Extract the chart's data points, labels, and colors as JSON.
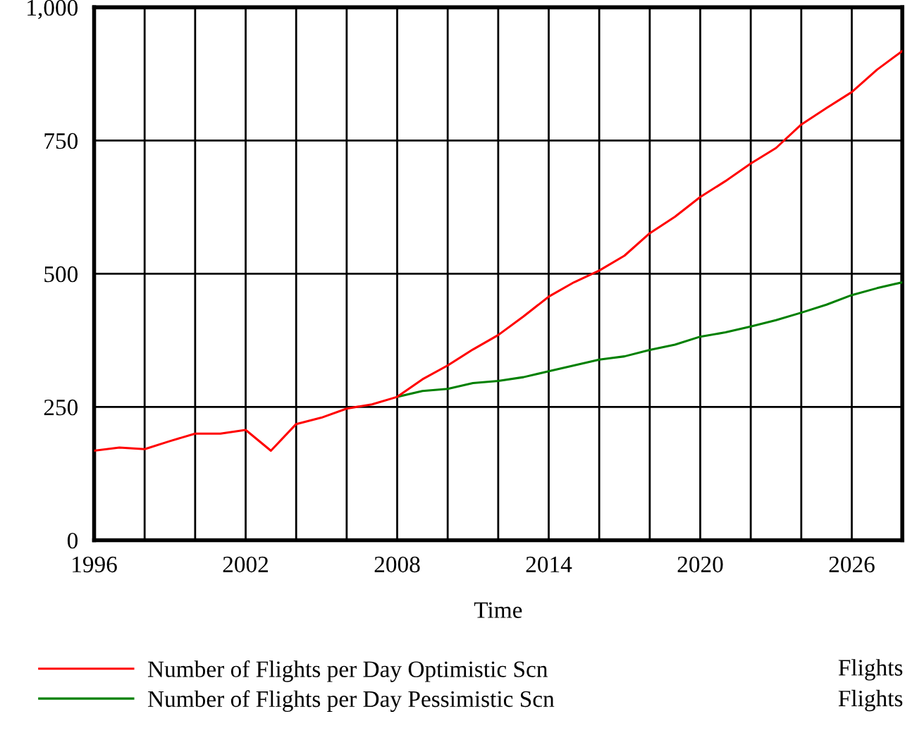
{
  "chart_data": {
    "type": "line",
    "xlabel": "Time",
    "x": [
      1996,
      1997,
      1998,
      1999,
      2000,
      2001,
      2002,
      2003,
      2004,
      2005,
      2006,
      2007,
      2008,
      2009,
      2010,
      2011,
      2012,
      2013,
      2014,
      2015,
      2016,
      2017,
      2018,
      2019,
      2020,
      2021,
      2022,
      2023,
      2024,
      2025,
      2026,
      2027,
      2028
    ],
    "series": [
      {
        "name": "Number of Flights per Day Optimistic Scn",
        "color": "#ff0000",
        "values": [
          168,
          174,
          171,
          186,
          200,
          200,
          207,
          168,
          218,
          230,
          247,
          255,
          269,
          302,
          328,
          358,
          385,
          420,
          457,
          484,
          506,
          534,
          576,
          607,
          644,
          674,
          707,
          736,
          780,
          811,
          841,
          883,
          918
        ]
      },
      {
        "name": "Number of Flights per Day Pessimistic Scn",
        "color": "#008000",
        "values": [
          null,
          null,
          null,
          null,
          null,
          null,
          null,
          null,
          null,
          null,
          null,
          null,
          269,
          280,
          284,
          295,
          299,
          306,
          317,
          328,
          339,
          345,
          357,
          367,
          382,
          390,
          401,
          413,
          427,
          442,
          460,
          473,
          484
        ]
      }
    ],
    "xlim": [
      1996,
      2028
    ],
    "xticks": [
      1996,
      {
        "value": 1998,
        "label": null
      },
      {
        "value": 2000,
        "label": null
      },
      2002,
      {
        "value": 2004,
        "label": null
      },
      {
        "value": 2006,
        "label": null
      },
      2008,
      {
        "value": 2010,
        "label": null
      },
      {
        "value": 2012,
        "label": null
      },
      2014,
      {
        "value": 2016,
        "label": null
      },
      {
        "value": 2018,
        "label": null
      },
      2020,
      {
        "value": 2022,
        "label": null
      },
      {
        "value": 2024,
        "label": null
      },
      2026
    ],
    "ylim": [
      0,
      1000
    ],
    "yticks": [
      0,
      250,
      500,
      750,
      {
        "value": 1000,
        "label": "1,000"
      }
    ],
    "grid": true,
    "legend": "bottom",
    "marker": "none",
    "line_style": "solid",
    "annotations": [
      "Flights",
      "Flights"
    ]
  }
}
